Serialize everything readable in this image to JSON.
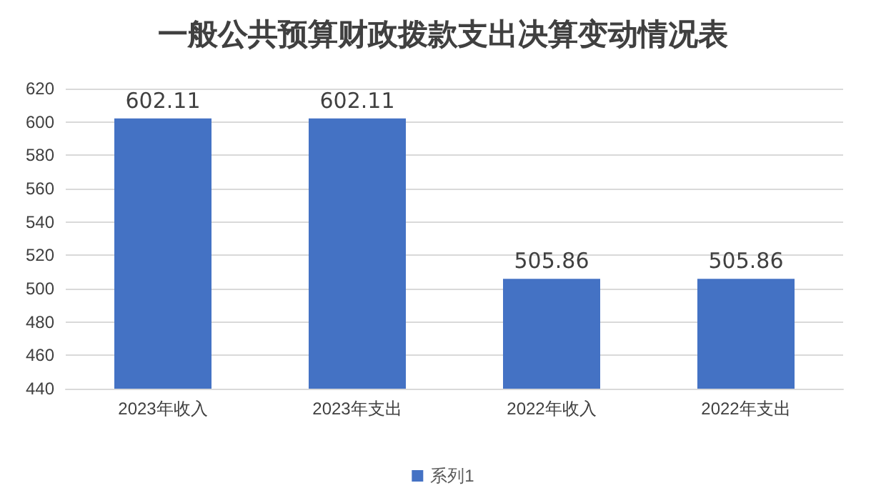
{
  "chart_data": {
    "type": "bar",
    "title": "一般公共预算财政拨款支出决算变动情况表",
    "categories": [
      "2023年收入",
      "2023年支出",
      "2022年收入",
      "2022年支出"
    ],
    "series": [
      {
        "name": "系列1",
        "color": "#4472c4",
        "values": [
          602.11,
          602.11,
          505.86,
          505.86
        ]
      }
    ],
    "ylim": [
      440,
      620
    ],
    "yticks": [
      440,
      460,
      480,
      500,
      520,
      540,
      560,
      580,
      600,
      620
    ],
    "grid": "y",
    "legend": "bottom",
    "data_labels": true
  }
}
